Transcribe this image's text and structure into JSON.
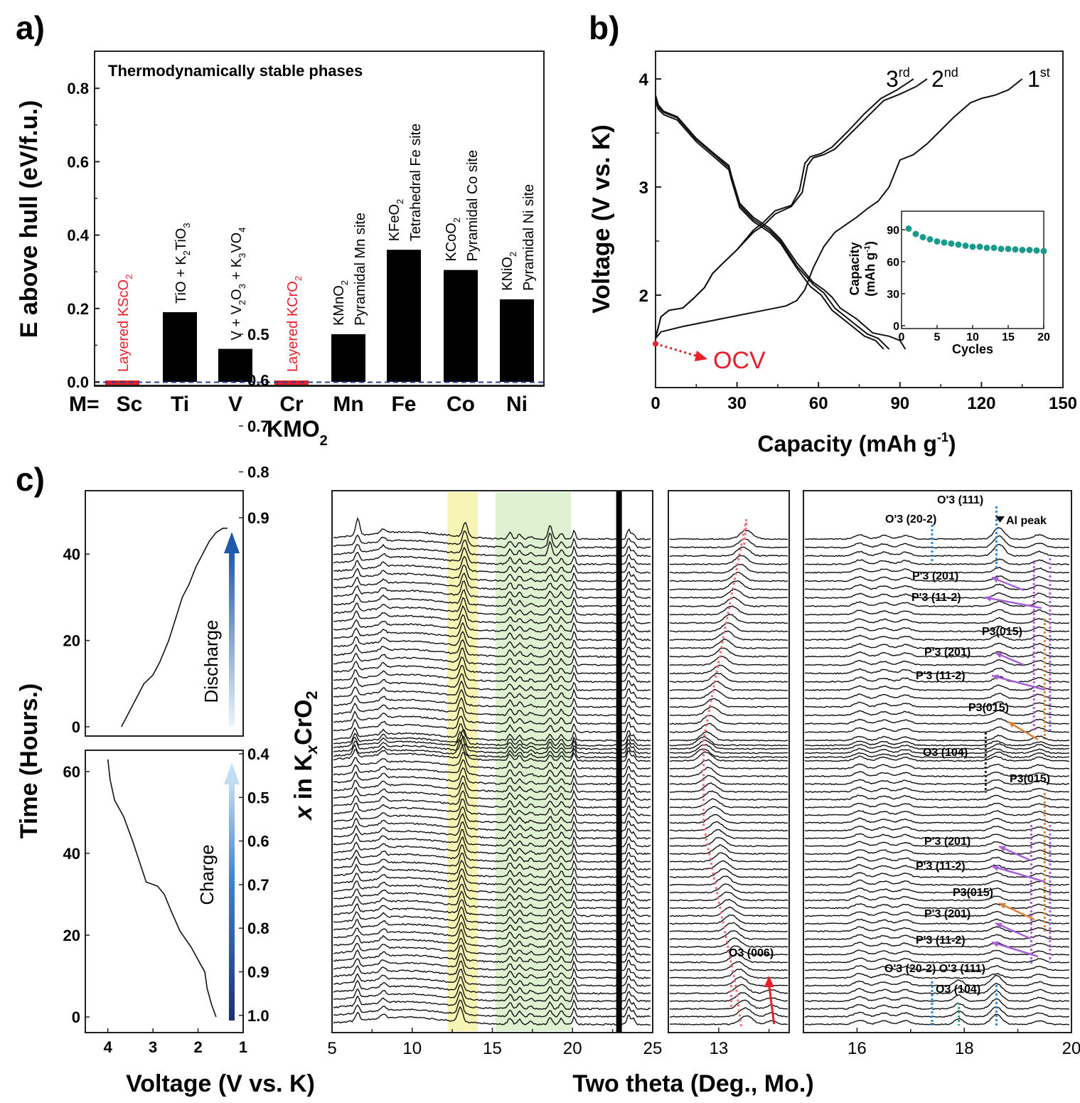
{
  "figure": {
    "panel_labels": [
      "a)",
      "b)",
      "c)"
    ]
  },
  "chart_data": [
    {
      "id": "a",
      "type": "bar",
      "title": "Thermodynamically stable phases",
      "xlabel": "KMO2",
      "xlabel_main": "KMO",
      "xlabel_sub": "2",
      "x_prefix": "M=",
      "ylabel": "E above hull (eV/f.u.)",
      "ylim": [
        0,
        0.88
      ],
      "yticks": [
        0.0,
        0.2,
        0.4,
        0.6,
        0.8
      ],
      "ytick_labels": [
        "0.0",
        "0.2",
        "0.4",
        "0.6",
        "0.8"
      ],
      "categories": [
        "Sc",
        "Ti",
        "V",
        "Cr",
        "Mn",
        "Fe",
        "Co",
        "Ni"
      ],
      "values": [
        0.003,
        0.19,
        0.09,
        0.003,
        0.13,
        0.36,
        0.305,
        0.225
      ],
      "bar_colors": [
        "#e8202a",
        "#000000",
        "#000000",
        "#e8202a",
        "#000000",
        "#000000",
        "#000000",
        "#000000"
      ],
      "reference_line": {
        "y": 0.0,
        "style": "dashed",
        "color": "#2a3f9a"
      },
      "annotations": [
        {
          "category": "Sc",
          "lines": [
            "Layered KScO2"
          ],
          "color": "#e8202a"
        },
        {
          "category": "Ti",
          "lines": [
            "TiO + K2TiO3"
          ],
          "color": "#000000"
        },
        {
          "category": "V",
          "lines": [
            "V + V2O3 + K3VO4"
          ],
          "color": "#000000"
        },
        {
          "category": "Cr",
          "lines": [
            "Layered KCrO2"
          ],
          "color": "#e8202a"
        },
        {
          "category": "Mn",
          "lines": [
            "KMnO2",
            "Pyramidal Mn site"
          ],
          "color": "#000000"
        },
        {
          "category": "Fe",
          "lines": [
            "KFeO2",
            "Tetrahedral Fe site"
          ],
          "color": "#000000"
        },
        {
          "category": "Co",
          "lines": [
            "KCoO2",
            "Pyramidal Co site"
          ],
          "color": "#000000"
        },
        {
          "category": "Ni",
          "lines": [
            "KNiO2",
            "Pyramidal Ni site"
          ],
          "color": "#000000"
        }
      ]
    },
    {
      "id": "b",
      "type": "line",
      "xlabel": "Capacity (mAh g-1)",
      "xlabel_main": "Capacity (mAh g",
      "xlabel_sup": "-1",
      "xlabel_end": ")",
      "ylabel": "Voltage (V vs. K)",
      "xlim": [
        0,
        150
      ],
      "ylim": [
        1.2,
        4.25
      ],
      "xticks": [
        0,
        30,
        60,
        90,
        120,
        150
      ],
      "yticks": [
        2,
        3,
        4
      ],
      "series": [
        {
          "name": "1st charge",
          "label": "1st",
          "x": [
            0,
            2,
            10,
            20,
            30,
            40,
            48,
            52,
            55,
            58,
            62,
            66,
            70,
            74,
            78,
            82,
            86,
            90,
            95,
            100,
            104,
            110,
            116,
            120,
            125,
            130,
            135
          ],
          "y": [
            1.6,
            1.66,
            1.71,
            1.76,
            1.81,
            1.86,
            1.9,
            1.95,
            2.05,
            2.25,
            2.45,
            2.58,
            2.65,
            2.72,
            2.8,
            2.87,
            3.0,
            3.25,
            3.3,
            3.4,
            3.5,
            3.65,
            3.78,
            3.82,
            3.85,
            3.9,
            4.0
          ]
        },
        {
          "name": "1st discharge",
          "x": [
            0,
            1,
            3,
            8,
            15,
            22,
            27,
            28,
            31,
            36,
            42,
            46,
            52,
            58,
            62,
            65,
            68,
            74,
            80,
            86,
            90,
            92
          ],
          "y": [
            3.85,
            3.76,
            3.7,
            3.65,
            3.45,
            3.3,
            3.2,
            3.1,
            2.85,
            2.72,
            2.62,
            2.52,
            2.3,
            2.12,
            2.05,
            1.98,
            1.88,
            1.78,
            1.65,
            1.62,
            1.58,
            1.5
          ]
        },
        {
          "name": "2nd charge",
          "label": "2nd",
          "x": [
            0,
            2,
            5,
            10,
            14,
            18,
            21,
            25,
            30,
            36,
            40,
            44,
            50,
            54,
            56,
            58,
            62,
            66,
            72,
            78,
            84,
            90,
            96,
            100
          ],
          "y": [
            1.6,
            1.8,
            1.86,
            1.88,
            1.97,
            2.07,
            2.2,
            2.3,
            2.42,
            2.58,
            2.65,
            2.75,
            2.82,
            2.95,
            3.2,
            3.27,
            3.3,
            3.35,
            3.5,
            3.65,
            3.8,
            3.86,
            3.93,
            4.0
          ]
        },
        {
          "name": "2nd discharge",
          "x": [
            0,
            1,
            3,
            8,
            15,
            22,
            27,
            28,
            31,
            36,
            42,
            46,
            52,
            58,
            62,
            66,
            72,
            78,
            82,
            86
          ],
          "y": [
            3.82,
            3.74,
            3.69,
            3.64,
            3.44,
            3.29,
            3.18,
            3.08,
            2.83,
            2.7,
            2.6,
            2.5,
            2.27,
            2.1,
            2.02,
            1.88,
            1.76,
            1.64,
            1.6,
            1.5
          ]
        },
        {
          "name": "3rd charge",
          "label": "3rd",
          "x": [
            0,
            2,
            5,
            10,
            14,
            18,
            21,
            25,
            30,
            36,
            40,
            44,
            50,
            53,
            55,
            57,
            61,
            65,
            71,
            77,
            83,
            89,
            95
          ],
          "y": [
            1.6,
            1.8,
            1.86,
            1.88,
            1.97,
            2.07,
            2.2,
            2.3,
            2.42,
            2.6,
            2.68,
            2.78,
            2.83,
            2.97,
            3.22,
            3.28,
            3.31,
            3.37,
            3.52,
            3.68,
            3.82,
            3.9,
            4.0
          ]
        },
        {
          "name": "3rd discharge",
          "x": [
            0,
            1,
            3,
            8,
            15,
            22,
            27,
            28,
            31,
            36,
            42,
            46,
            52,
            57,
            61,
            65,
            71,
            77,
            81,
            84
          ],
          "y": [
            3.8,
            3.72,
            3.67,
            3.62,
            3.42,
            3.27,
            3.16,
            3.06,
            2.81,
            2.68,
            2.58,
            2.48,
            2.25,
            2.08,
            2.0,
            1.86,
            1.74,
            1.62,
            1.58,
            1.5
          ]
        }
      ],
      "cycle_labels": [
        {
          "base": "3",
          "sup": "rd"
        },
        {
          "base": "2",
          "sup": "nd"
        },
        {
          "base": "1",
          "sup": "st"
        }
      ],
      "ocv": {
        "label": "OCV",
        "x": 0,
        "y": 1.55,
        "color": "#e8202a"
      },
      "inset": {
        "type": "scatter",
        "xlabel": "Cycles",
        "ylabel_line1": "Capacity",
        "ylabel_line2": "(mAh g-1)",
        "xlim": [
          0,
          20
        ],
        "ylim": [
          0,
          110
        ],
        "xticks": [
          0,
          5,
          10,
          15,
          20
        ],
        "yticks": [
          0,
          30,
          60,
          90
        ],
        "color": "#1a9a8a",
        "x": [
          1,
          2,
          3,
          4,
          5,
          6,
          7,
          8,
          9,
          10,
          11,
          12,
          13,
          14,
          15,
          16,
          17,
          18,
          19,
          20
        ],
        "y": [
          91,
          86,
          83,
          81,
          79,
          78,
          77,
          76,
          75,
          74,
          74,
          73,
          73,
          72,
          72,
          71.5,
          71,
          71,
          70.5,
          70
        ]
      }
    },
    {
      "id": "c-left-top",
      "type": "line",
      "label": "Discharge",
      "ylabel": "Time (Hours.)",
      "xlim": [
        4.5,
        1.0
      ],
      "ylim": [
        -3,
        52
      ],
      "yticks": [
        0,
        20,
        40
      ],
      "right_axis": {
        "label": "x in KxCrO2",
        "ticks": [
          0.9,
          0.8,
          0.7,
          0.6,
          0.5
        ]
      },
      "x": [
        3.7,
        3.6,
        3.4,
        3.2,
        3.0,
        2.85,
        2.65,
        2.5,
        2.35,
        2.2,
        2.05,
        1.9,
        1.75,
        1.6,
        1.45,
        1.35
      ],
      "y": [
        0,
        2,
        6,
        10,
        12,
        15,
        20,
        25,
        30,
        33,
        37,
        40,
        43,
        45,
        46,
        46
      ]
    },
    {
      "id": "c-left-bottom",
      "type": "line",
      "label": "Charge",
      "xlabel": "Voltage (V vs. K)",
      "xlim": [
        4.5,
        1.0
      ],
      "ylim": [
        -4,
        66
      ],
      "xticks": [
        4,
        3,
        2,
        1
      ],
      "yticks": [
        0,
        20,
        40,
        60
      ],
      "right_axis": {
        "label": "x in KxCrO2",
        "ticks": [
          0.4,
          0.5,
          0.6,
          0.7,
          0.8,
          0.9,
          1.0
        ]
      },
      "x": [
        1.6,
        1.7,
        1.8,
        1.85,
        1.95,
        2.15,
        2.4,
        2.6,
        2.75,
        2.9,
        3.15,
        3.3,
        3.45,
        3.65,
        3.85,
        3.95,
        4.0
      ],
      "y": [
        0,
        3,
        7,
        11,
        13,
        17,
        21,
        26,
        30,
        32,
        33,
        38,
        43,
        49,
        53,
        58,
        63
      ]
    },
    {
      "id": "c-xrd-full",
      "type": "line",
      "description": "Stacked operando XRD patterns",
      "xlabel": "Two theta (Deg., Mo.)",
      "xlim": [
        5,
        25
      ],
      "xticks": [
        5,
        10,
        15,
        20,
        25
      ],
      "highlight_bands": [
        {
          "from": 12.2,
          "to": 14.1,
          "color": "#f6f3a8"
        },
        {
          "from": 15.2,
          "to": 19.9,
          "color": "#d8efc8"
        }
      ],
      "peaks": [
        6.6,
        8.2,
        13.2,
        16.1,
        17.3,
        18.6,
        20.1,
        22.9,
        23.5
      ],
      "al_line": 22.9,
      "n_patterns_discharge": 27,
      "n_patterns_charge": 37
    },
    {
      "id": "c-xrd-13",
      "type": "line",
      "xlim": [
        12.0,
        14.4
      ],
      "xticks": [
        13
      ],
      "annotations": [
        {
          "text": "O3 (006)",
          "color": "#000000"
        }
      ],
      "guide_color": "#f06a78"
    },
    {
      "id": "c-xrd-16-20",
      "type": "line",
      "xlim": [
        15.0,
        20.0
      ],
      "xticks": [
        16,
        18,
        20
      ],
      "annotations": [
        {
          "text": "O'3 (111)",
          "x": 18.65
        },
        {
          "text": "O'3 (20-2)",
          "x": 17.4
        },
        {
          "text": "Al peak",
          "x": 18.7
        },
        {
          "text": "P'3 (201)"
        },
        {
          "text": "P'3 (11-2)"
        },
        {
          "text": "P3(015)"
        },
        {
          "text": "P'3 (201)"
        },
        {
          "text": "P'3 (11-2)"
        },
        {
          "text": "P3(015)"
        },
        {
          "text": "O3 (104)",
          "x": 18.4
        },
        {
          "text": "P3(015)"
        },
        {
          "text": "P'3 (201)"
        },
        {
          "text": "P'3 (11-2)"
        },
        {
          "text": "P3(015)"
        },
        {
          "text": "P'3 (201)"
        },
        {
          "text": "P'3 (11-2)"
        },
        {
          "text": "O'3 (20-2) O'3 (111)"
        },
        {
          "text": "O3 (104)",
          "x": 17.9
        }
      ],
      "guide_colors": {
        "blue": "#2a8ad8",
        "purple": "#a860d8",
        "orange": "#d8823a",
        "green": "#2aa860",
        "black": "#222222"
      }
    }
  ]
}
